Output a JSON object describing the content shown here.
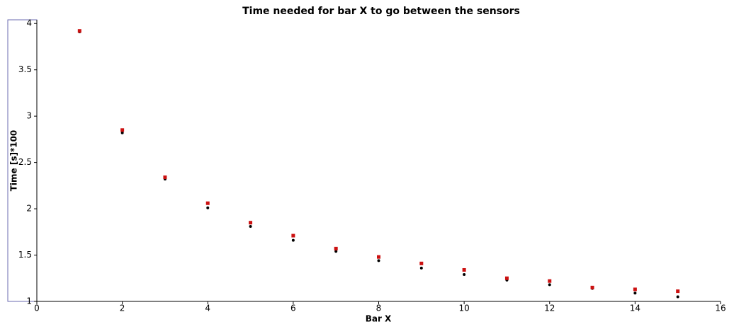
{
  "chart_data": {
    "type": "scatter",
    "title": "Time needed for bar X to go between the sensors",
    "x_label": "Bar X",
    "y_label": "Time [s]*100",
    "xlim": [
      0,
      16
    ],
    "xticks": [
      0,
      2,
      4,
      6,
      8,
      10,
      12,
      14,
      16
    ],
    "ylim": [
      1,
      4.04
    ],
    "yticks": [
      1,
      1.5,
      2,
      2.5,
      3,
      3.5,
      4
    ],
    "series": [
      {
        "color": "#000000",
        "marker": "circle",
        "x": [
          1,
          2,
          3,
          4,
          5,
          6,
          7,
          8,
          9,
          10,
          11,
          12,
          13,
          14,
          15
        ],
        "values": [
          3.91,
          2.82,
          2.32,
          2.01,
          1.81,
          1.66,
          1.54,
          1.44,
          1.36,
          1.29,
          1.23,
          1.18,
          1.14,
          1.09,
          1.05
        ]
      },
      {
        "color": "#cc1111",
        "marker": "square",
        "x": [
          1,
          2,
          3,
          4,
          5,
          6,
          7,
          8,
          9,
          10,
          11,
          12,
          13,
          14,
          15
        ],
        "values": [
          3.92,
          2.85,
          2.34,
          2.06,
          1.85,
          1.71,
          1.57,
          1.48,
          1.41,
          1.34,
          1.25,
          1.22,
          1.15,
          1.13,
          1.11
        ]
      }
    ]
  }
}
